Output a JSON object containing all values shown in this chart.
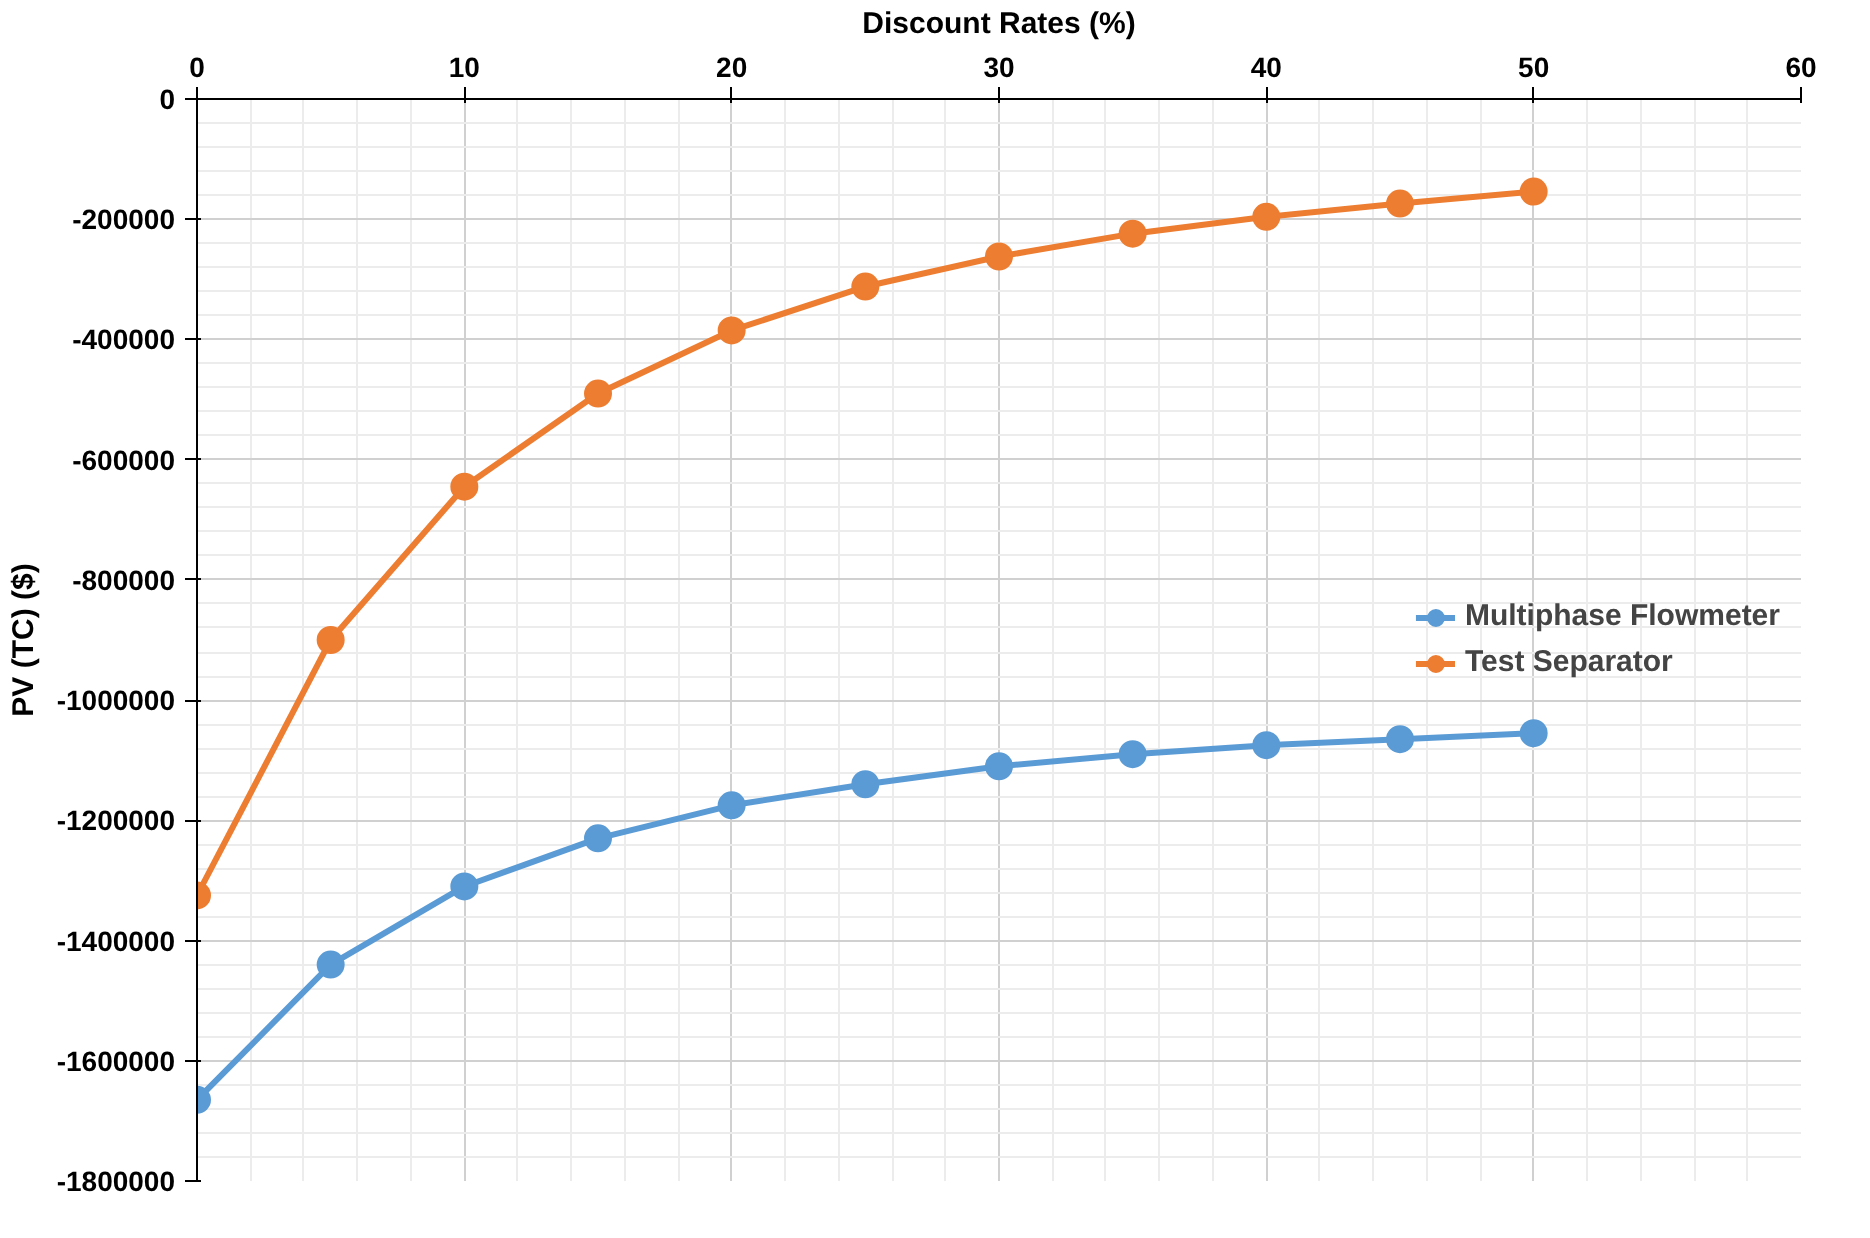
{
  "chart_data": {
    "type": "line",
    "xlabel": "Discount Rates (%)",
    "ylabel": "PV (TC) ($)",
    "x": [
      0,
      5,
      10,
      15,
      20,
      25,
      30,
      35,
      40,
      45,
      50
    ],
    "series": [
      {
        "name": "Multiphase Flowmeter",
        "color": "#5b9bd5",
        "values": [
          -1665000,
          -1440000,
          -1310000,
          -1230000,
          -1175000,
          -1140000,
          -1110000,
          -1090000,
          -1075000,
          -1065000,
          -1055000
        ]
      },
      {
        "name": "Test Separator",
        "color": "#ed7d31",
        "values": [
          -1325000,
          -900000,
          -645000,
          -490000,
          -385000,
          -312000,
          -262000,
          -224000,
          -196000,
          -174000,
          -154000
        ]
      }
    ],
    "xlim": [
      0,
      60
    ],
    "xticks": [
      0,
      10,
      20,
      30,
      40,
      50,
      60
    ],
    "ylim": [
      -1800000,
      0
    ],
    "yticks": [
      -1800000,
      -1600000,
      -1400000,
      -1200000,
      -1000000,
      -800000,
      -600000,
      -400000,
      -200000,
      0
    ],
    "grid": true,
    "legend": "right",
    "marker": "circle",
    "line_style": "solid"
  }
}
